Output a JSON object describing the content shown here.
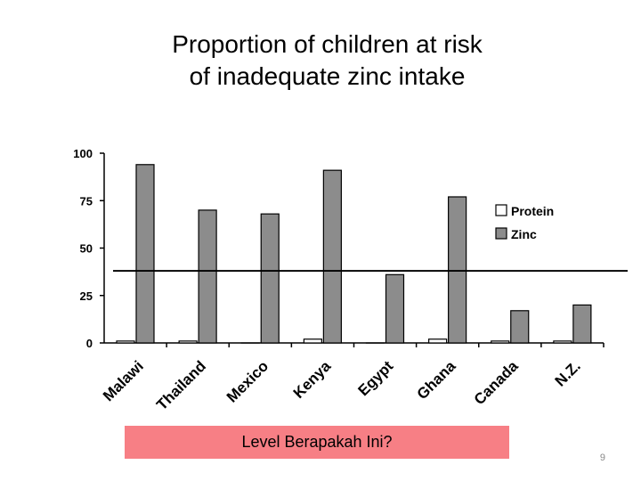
{
  "slide": {
    "title_line1": "Proportion of children at risk",
    "title_line2": "of inadequate zinc intake",
    "caption": "Level Berapakah Ini?",
    "page_number": "9"
  },
  "chart_data": {
    "type": "bar",
    "title": "",
    "xlabel": "",
    "ylabel": "",
    "ylim": [
      0,
      100
    ],
    "yticks": [
      0,
      25,
      50,
      75,
      100
    ],
    "grid": false,
    "legend_position": "right",
    "categories": [
      "Malawi",
      "Thailand",
      "Mexico",
      "Kenya",
      "Egypt",
      "Ghana",
      "Canada",
      "N.Z."
    ],
    "series": [
      {
        "name": "Protein",
        "color": "#ffffff",
        "values": [
          1,
          1,
          0,
          2,
          0,
          2,
          1,
          1
        ]
      },
      {
        "name": "Zinc",
        "color": "#8c8c8c",
        "values": [
          94,
          70,
          68,
          91,
          36,
          77,
          17,
          20
        ]
      }
    ],
    "reference_line": {
      "value": 38
    }
  }
}
